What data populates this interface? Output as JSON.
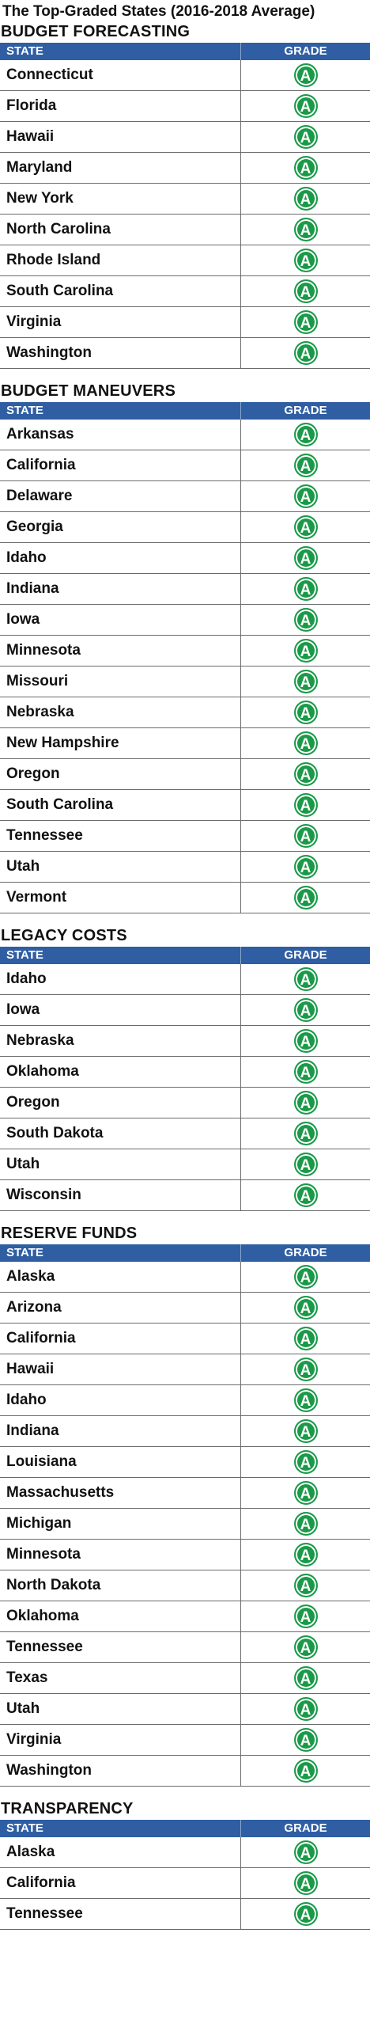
{
  "page": {
    "title": "The Top-Graded States (2016-2018 Average)"
  },
  "colors": {
    "header_bg": "#2f5ea3",
    "grade_a": "#1a9a48"
  },
  "chart_data": {
    "type": "table",
    "title": "The Top-Graded States (2016-2018 Average)",
    "columns": [
      "STATE",
      "GRADE"
    ],
    "sections": [
      {
        "name": "BUDGET FORECASTING",
        "rows": [
          {
            "state": "Connecticut",
            "grade": "A"
          },
          {
            "state": "Florida",
            "grade": "A"
          },
          {
            "state": "Hawaii",
            "grade": "A"
          },
          {
            "state": "Maryland",
            "grade": "A"
          },
          {
            "state": "New York",
            "grade": "A"
          },
          {
            "state": "North Carolina",
            "grade": "A"
          },
          {
            "state": "Rhode Island",
            "grade": "A"
          },
          {
            "state": "South Carolina",
            "grade": "A"
          },
          {
            "state": "Virginia",
            "grade": "A"
          },
          {
            "state": "Washington",
            "grade": "A"
          }
        ]
      },
      {
        "name": "BUDGET MANEUVERS",
        "rows": [
          {
            "state": "Arkansas",
            "grade": "A"
          },
          {
            "state": "California",
            "grade": "A"
          },
          {
            "state": "Delaware",
            "grade": "A"
          },
          {
            "state": "Georgia",
            "grade": "A"
          },
          {
            "state": "Idaho",
            "grade": "A"
          },
          {
            "state": "Indiana",
            "grade": "A"
          },
          {
            "state": "Iowa",
            "grade": "A"
          },
          {
            "state": "Minnesota",
            "grade": "A"
          },
          {
            "state": "Missouri",
            "grade": "A"
          },
          {
            "state": "Nebraska",
            "grade": "A"
          },
          {
            "state": "New Hampshire",
            "grade": "A"
          },
          {
            "state": "Oregon",
            "grade": "A"
          },
          {
            "state": "South Carolina",
            "grade": "A"
          },
          {
            "state": "Tennessee",
            "grade": "A"
          },
          {
            "state": "Utah",
            "grade": "A"
          },
          {
            "state": "Vermont",
            "grade": "A"
          }
        ]
      },
      {
        "name": "LEGACY COSTS",
        "rows": [
          {
            "state": "Idaho",
            "grade": "A"
          },
          {
            "state": "Iowa",
            "grade": "A"
          },
          {
            "state": "Nebraska",
            "grade": "A"
          },
          {
            "state": "Oklahoma",
            "grade": "A"
          },
          {
            "state": "Oregon",
            "grade": "A"
          },
          {
            "state": "South Dakota",
            "grade": "A"
          },
          {
            "state": "Utah",
            "grade": "A"
          },
          {
            "state": "Wisconsin",
            "grade": "A"
          }
        ]
      },
      {
        "name": "RESERVE FUNDS",
        "rows": [
          {
            "state": "Alaska",
            "grade": "A"
          },
          {
            "state": "Arizona",
            "grade": "A"
          },
          {
            "state": "California",
            "grade": "A"
          },
          {
            "state": "Hawaii",
            "grade": "A"
          },
          {
            "state": "Idaho",
            "grade": "A"
          },
          {
            "state": "Indiana",
            "grade": "A"
          },
          {
            "state": "Louisiana",
            "grade": "A"
          },
          {
            "state": "Massachusetts",
            "grade": "A"
          },
          {
            "state": "Michigan",
            "grade": "A"
          },
          {
            "state": "Minnesota",
            "grade": "A"
          },
          {
            "state": "North Dakota",
            "grade": "A"
          },
          {
            "state": "Oklahoma",
            "grade": "A"
          },
          {
            "state": "Tennessee",
            "grade": "A"
          },
          {
            "state": "Texas",
            "grade": "A"
          },
          {
            "state": "Utah",
            "grade": "A"
          },
          {
            "state": "Virginia",
            "grade": "A"
          },
          {
            "state": "Washington",
            "grade": "A"
          }
        ]
      },
      {
        "name": "TRANSPARENCY",
        "rows": [
          {
            "state": "Alaska",
            "grade": "A"
          },
          {
            "state": "California",
            "grade": "A"
          },
          {
            "state": "Tennessee",
            "grade": "A"
          }
        ]
      }
    ]
  }
}
